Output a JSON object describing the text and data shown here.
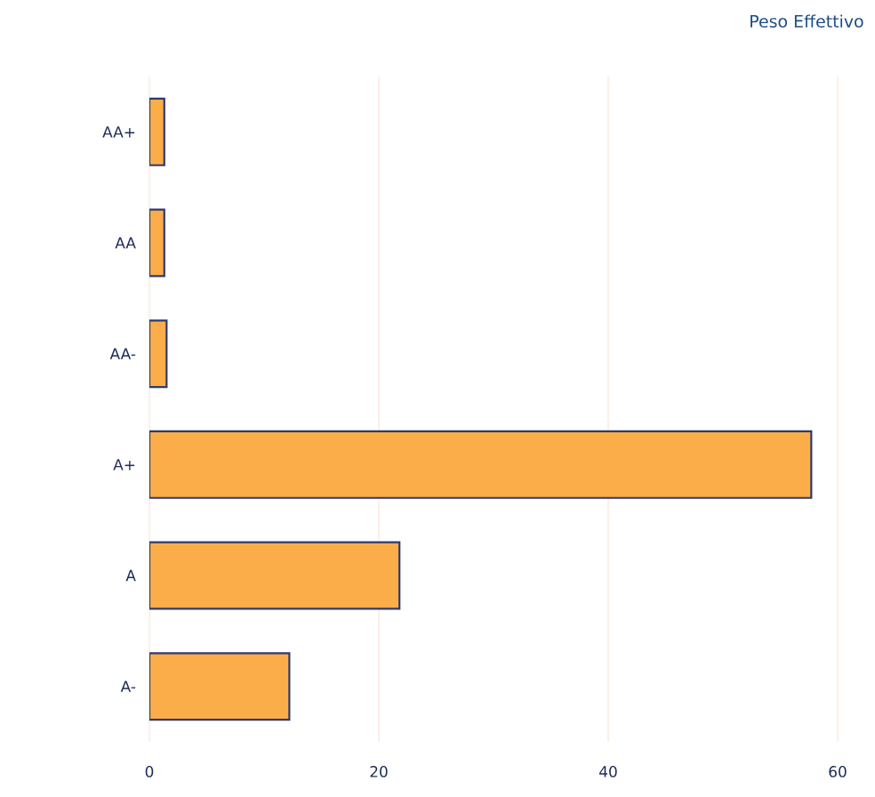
{
  "chart_data": {
    "type": "bar",
    "orientation": "horizontal",
    "title": "Peso Effettivo",
    "categories": [
      "AA+",
      "AA",
      "AA-",
      "A+",
      "A",
      "A-"
    ],
    "values": [
      1.3,
      1.3,
      1.5,
      57.7,
      21.8,
      12.2
    ],
    "color": "#fbad4a",
    "xlim": [
      0,
      60
    ],
    "xticks": [
      0,
      20,
      40,
      60
    ],
    "grid": "x"
  }
}
